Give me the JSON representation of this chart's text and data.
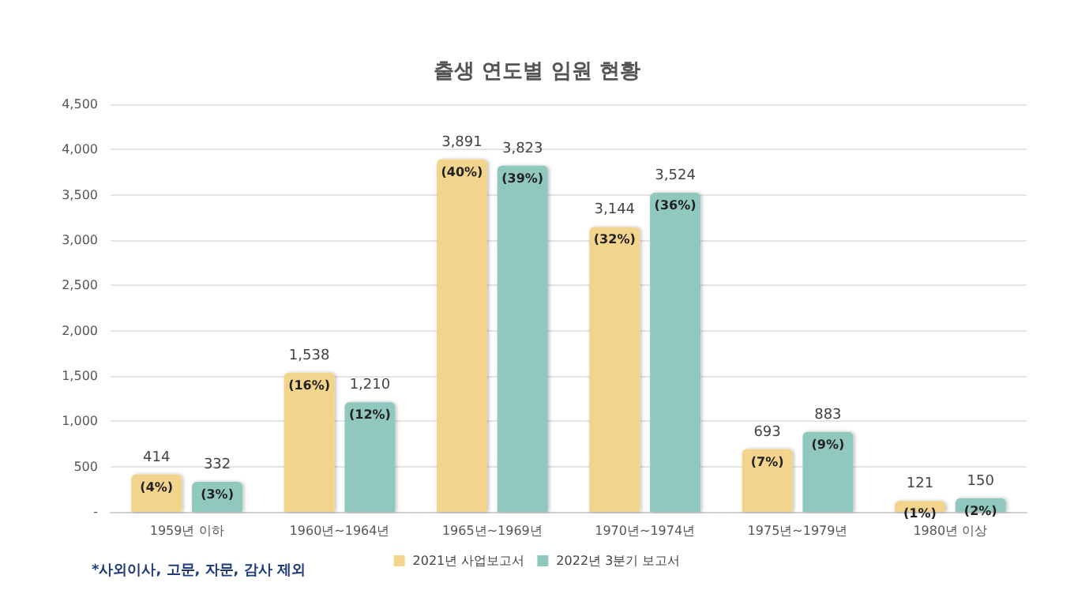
{
  "chart_data": {
    "type": "bar",
    "title": "출생 연도별 임원 현황",
    "categories": [
      "1959년 이하",
      "1960년~1964년",
      "1965년~1969년",
      "1970년~1974년",
      "1975년~1979년",
      "1980년 이상"
    ],
    "series": [
      {
        "name": "2021년 사업보고서",
        "color": "#f2d48c",
        "values": [
          414,
          1538,
          3891,
          3144,
          693,
          121
        ],
        "value_labels": [
          "414\n(4%)",
          "1,538\n(16%)",
          "3,891\n(40%)",
          "3,144\n(32%)",
          "693\n(7%)",
          "121\n(1%)"
        ]
      },
      {
        "name": "2022년 3분기 보고서",
        "color": "#91c8be",
        "values": [
          332,
          1210,
          3823,
          3524,
          883,
          150
        ],
        "value_labels": [
          "332\n(3%)",
          "1,210\n(12%)",
          "3,823\n(39%)",
          "3,524\n(36%)",
          "883\n(9%)",
          "150\n(2%)"
        ]
      }
    ],
    "ylim": [
      0,
      4500
    ],
    "yticks": [
      {
        "value": 0,
        "label": "-"
      },
      {
        "value": 500,
        "label": "500"
      },
      {
        "value": 1000,
        "label": "1,000"
      },
      {
        "value": 1500,
        "label": "1,500"
      },
      {
        "value": 2000,
        "label": "2,000"
      },
      {
        "value": 2500,
        "label": "2,500"
      },
      {
        "value": 3000,
        "label": "3,000"
      },
      {
        "value": 3500,
        "label": "3,500"
      },
      {
        "value": 4000,
        "label": "4,000"
      },
      {
        "value": 4500,
        "label": "4,500"
      }
    ],
    "grid": "y",
    "legend": "bottom",
    "annotations": [
      "*사외이사, 고문, 자문, 감사 제외"
    ]
  }
}
